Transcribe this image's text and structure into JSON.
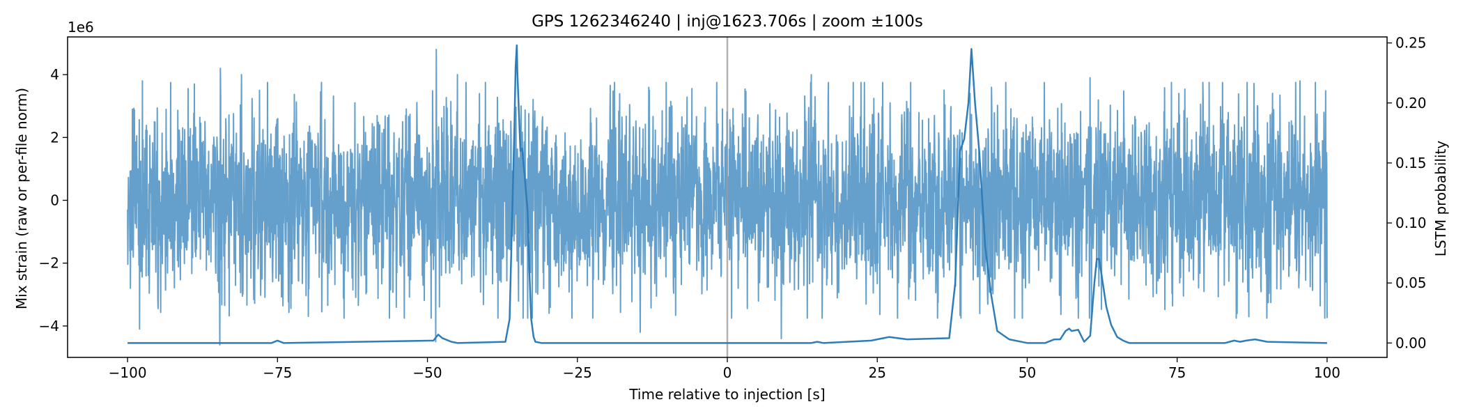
{
  "chart_data": {
    "type": "line",
    "title": "GPS 1262346240 | inj@1623.706s | zoom ±100s",
    "xlabel": "Time relative to injection [s]",
    "ylabel_left": "Mix strain (raw or per-file norm)",
    "ylabel_right": "LSTM probability",
    "offset_label": "1e6",
    "xlim": [
      -110,
      110
    ],
    "ylim_left": [
      -5.0,
      5.2
    ],
    "ylim_right": [
      -0.012,
      0.255
    ],
    "x_ticks": [
      -100,
      -75,
      -50,
      -25,
      0,
      25,
      50,
      75,
      100
    ],
    "x_tick_labels": [
      "−100",
      "−75",
      "−50",
      "−25",
      "0",
      "25",
      "50",
      "75",
      "100"
    ],
    "y_left_ticks": [
      -4,
      -2,
      0,
      2,
      4
    ],
    "y_left_tick_labels": [
      "−4",
      "−2",
      "0",
      "2",
      "4"
    ],
    "y_right_ticks": [
      0.0,
      0.05,
      0.1,
      0.15,
      0.2,
      0.25
    ],
    "y_right_tick_labels": [
      "0.00",
      "0.05",
      "0.10",
      "0.15",
      "0.20",
      "0.25"
    ],
    "injection_marker_x": 0,
    "series": [
      {
        "name": "Mix strain",
        "axis": "left",
        "color": "#64a0cb",
        "style": "dense-noise",
        "x_range": [
          -100,
          100
        ],
        "typical_envelope": [
          -3.0,
          3.0
        ],
        "extreme_points": [
          {
            "x": -99.5,
            "y": -2.8
          },
          {
            "x": -99.2,
            "y": 2.9
          },
          {
            "x": -98,
            "y": -4.1
          },
          {
            "x": -97.5,
            "y": 3.8
          },
          {
            "x": -84.5,
            "y": 4.2
          },
          {
            "x": -84.6,
            "y": -4.6
          },
          {
            "x": -81,
            "y": 4.0
          },
          {
            "x": -78,
            "y": 3.5
          },
          {
            "x": -48.5,
            "y": 4.8
          },
          {
            "x": -48.6,
            "y": -4.5
          },
          {
            "x": -45,
            "y": 4.0
          },
          {
            "x": -14.5,
            "y": -4.2
          },
          {
            "x": -13,
            "y": 3.5
          },
          {
            "x": 9,
            "y": -4.4
          },
          {
            "x": 14,
            "y": 4.0
          },
          {
            "x": 40.5,
            "y": 3.4
          },
          {
            "x": 60.5,
            "y": 3.9
          },
          {
            "x": 85,
            "y": -3.6
          },
          {
            "x": 95.5,
            "y": 3.8
          },
          {
            "x": 99.5,
            "y": 2.8
          },
          {
            "x": 99.8,
            "y": -2.6
          }
        ]
      },
      {
        "name": "LSTM probability",
        "axis": "right",
        "color": "#2e7db8",
        "x": [
          -100,
          -76,
          -75,
          -74,
          -49,
          -48.2,
          -47.5,
          -46,
          -45,
          -37,
          -36.3,
          -35.9,
          -35.5,
          -35.3,
          -35.1,
          -35,
          -34.5,
          -34.2,
          -34,
          -33.8,
          -33.3,
          -33,
          -32.7,
          -32.3,
          -32,
          -31,
          -30,
          0,
          14,
          15,
          16,
          24,
          25,
          27,
          30,
          37,
          38,
          38.8,
          39.5,
          40.2,
          40.7,
          41.3,
          42,
          43,
          44,
          45,
          47,
          50,
          53,
          54.5,
          55.5,
          56.4,
          57,
          57.4,
          58.5,
          59.5,
          60.5,
          61.2,
          61.6,
          62,
          62.6,
          63.2,
          64,
          65,
          66,
          67,
          68,
          70,
          73,
          83,
          84.5,
          85.5,
          86.5,
          88,
          89,
          90,
          100
        ],
        "y": [
          0.0,
          0.0,
          0.002,
          0.0,
          0.002,
          0.007,
          0.004,
          0.001,
          0.0,
          0.001,
          0.02,
          0.1,
          0.18,
          0.23,
          0.248,
          0.225,
          0.16,
          0.162,
          0.15,
          0.14,
          0.11,
          0.06,
          0.02,
          0.005,
          0.001,
          0.0,
          0.0,
          0.0,
          0.0,
          0.001,
          0.0,
          0.002,
          0.003,
          0.005,
          0.003,
          0.004,
          0.05,
          0.16,
          0.17,
          0.2,
          0.245,
          0.2,
          0.16,
          0.08,
          0.04,
          0.01,
          0.003,
          0.0,
          0.0,
          0.003,
          0.003,
          0.01,
          0.012,
          0.01,
          0.011,
          0.001,
          0.006,
          0.05,
          0.07,
          0.07,
          0.05,
          0.03,
          0.015,
          0.005,
          0.002,
          0.0,
          0.0,
          0.0,
          0.0,
          0.0,
          0.002,
          0.001,
          0.002,
          0.003,
          0.002,
          0.001,
          0.0
        ]
      }
    ],
    "grid": false
  }
}
